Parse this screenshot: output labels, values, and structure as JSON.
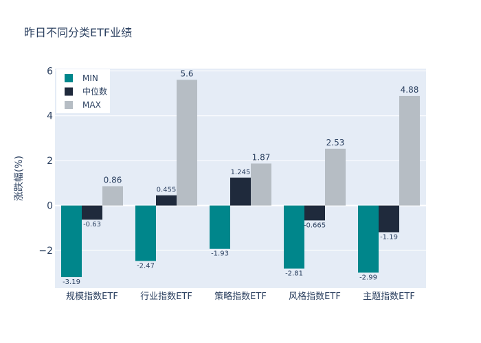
{
  "chart_data": {
    "type": "bar",
    "title": "昨日不同分类ETF业绩",
    "xlabel": "",
    "ylabel": "涨跌幅(%)",
    "categories": [
      "规模指数ETF",
      "行业指数ETF",
      "策略指数ETF",
      "风格指数ETF",
      "主题指数ETF"
    ],
    "series": [
      {
        "name": "MIN",
        "values": [
          -3.19,
          -2.47,
          -1.93,
          -2.81,
          -2.99
        ],
        "labels": [
          "-3.19",
          "-2.47",
          "-1.93",
          "-2.81",
          "-2.99"
        ],
        "color": "#00868b"
      },
      {
        "name": "中位数",
        "values": [
          -0.63,
          0.455,
          1.245,
          -0.665,
          -1.19
        ],
        "labels": [
          "-0.63",
          "0.455",
          "1.245",
          "-0.665",
          "-1.19"
        ],
        "color": "#1f2a3c"
      },
      {
        "name": "MAX",
        "values": [
          0.86,
          5.6,
          1.87,
          2.53,
          4.88
        ],
        "labels": [
          "0.86",
          "5.6",
          "1.87",
          "2.53",
          "4.88"
        ],
        "color": "#b6bdc4"
      }
    ],
    "yticks": [
      6,
      4,
      2,
      0,
      -2
    ],
    "ytick_labels": [
      "6",
      "4",
      "2",
      "0",
      "−2"
    ],
    "ylim": [
      -3.68,
      6.1
    ],
    "grid": true,
    "legend": "top-left",
    "colors": {
      "plot_bg": "#e5ecf6",
      "grid": "#ffffff",
      "text": "#2a3f5f"
    }
  }
}
